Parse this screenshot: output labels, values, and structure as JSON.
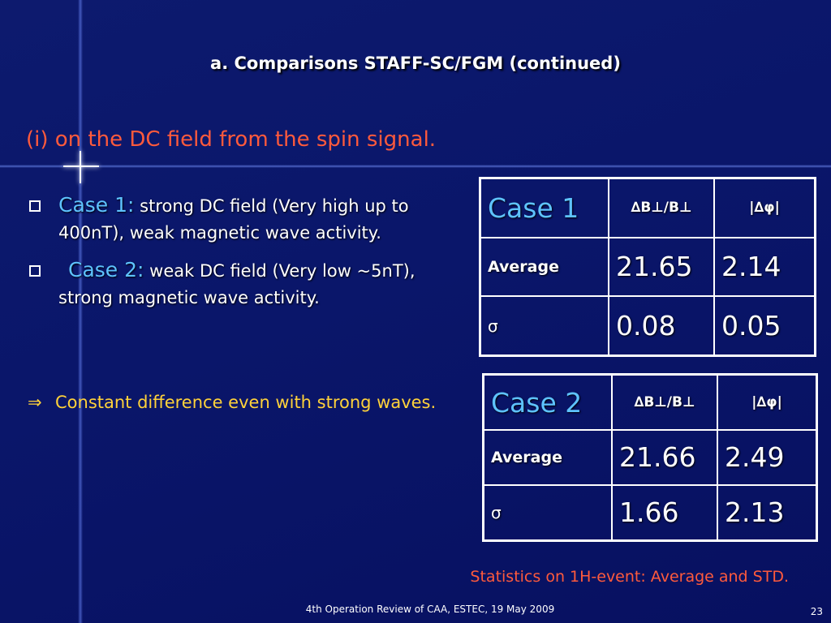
{
  "slide": {
    "title": "a. Comparisons STAFF-SC/FGM (continued)",
    "subtitle": "(i) on the DC field from the spin signal.",
    "bullets": [
      {
        "label": "Case 1:",
        "text": " strong DC field (Very high up to 400nT), weak magnetic wave activity."
      },
      {
        "label": "Case 2:",
        "text": " weak DC field (Very low ~5nT), strong magnetic wave activity."
      }
    ],
    "conclusion": {
      "arrow": "⇒",
      "text": "Constant difference even with strong waves."
    },
    "tables": [
      {
        "header": [
          "Case 1",
          "∆B⊥/B⊥",
          "|∆φ|"
        ],
        "rows": [
          [
            "Average",
            "21.65",
            "2.14"
          ],
          [
            "σ",
            "0.08",
            "0.05"
          ]
        ]
      },
      {
        "header": [
          "Case 2",
          "∆B⊥/B⊥",
          "|∆φ|"
        ],
        "rows": [
          [
            "Average",
            "21.66",
            "2.49"
          ],
          [
            "σ",
            "1.66",
            "2.13"
          ]
        ]
      }
    ],
    "stats_caption": "Statistics on 1H-event: Average and STD.",
    "footer": "4th Operation Review of CAA, ESTEC, 19 May 2009",
    "page_number": "23"
  },
  "colors": {
    "background": "#0a166a",
    "accent_red": "#ff5a3c",
    "accent_blue": "#5ec3ff",
    "accent_yellow": "#ffd23a"
  }
}
